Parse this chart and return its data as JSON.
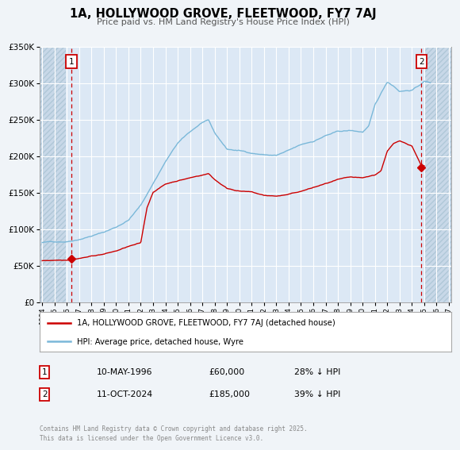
{
  "title": "1A, HOLLYWOOD GROVE, FLEETWOOD, FY7 7AJ",
  "subtitle": "Price paid vs. HM Land Registry's House Price Index (HPI)",
  "background_color": "#f0f4f8",
  "plot_bg_color": "#dce8f5",
  "hatch_color": "#c8d8e8",
  "grid_color": "#ffffff",
  "hpi_color": "#7ab8d9",
  "price_color": "#cc0000",
  "dashed_line_color": "#cc0000",
  "marker1_date": 1996.36,
  "marker1_price": 60000,
  "marker2_date": 2024.78,
  "marker2_price": 185000,
  "ylim": [
    0,
    350000
  ],
  "xlim": [
    1993.8,
    2027.2
  ],
  "hatch_left_end": 1995.92,
  "hatch_right_start": 2025.08,
  "yticks": [
    0,
    50000,
    100000,
    150000,
    200000,
    250000,
    300000,
    350000
  ],
  "xtick_years": [
    1994,
    1995,
    1996,
    1997,
    1998,
    1999,
    2000,
    2001,
    2002,
    2003,
    2004,
    2005,
    2006,
    2007,
    2008,
    2009,
    2010,
    2011,
    2012,
    2013,
    2014,
    2015,
    2016,
    2017,
    2018,
    2019,
    2020,
    2021,
    2022,
    2023,
    2024,
    2025,
    2026,
    2027
  ],
  "legend_label_red": "1A, HOLLYWOOD GROVE, FLEETWOOD, FY7 7AJ (detached house)",
  "legend_label_blue": "HPI: Average price, detached house, Wyre",
  "annotation1_date": "10-MAY-1996",
  "annotation1_price": "£60,000",
  "annotation1_hpi": "28% ↓ HPI",
  "annotation2_date": "11-OCT-2024",
  "annotation2_price": "£185,000",
  "annotation2_hpi": "39% ↓ HPI",
  "footer": "Contains HM Land Registry data © Crown copyright and database right 2025.\nThis data is licensed under the Open Government Licence v3.0."
}
